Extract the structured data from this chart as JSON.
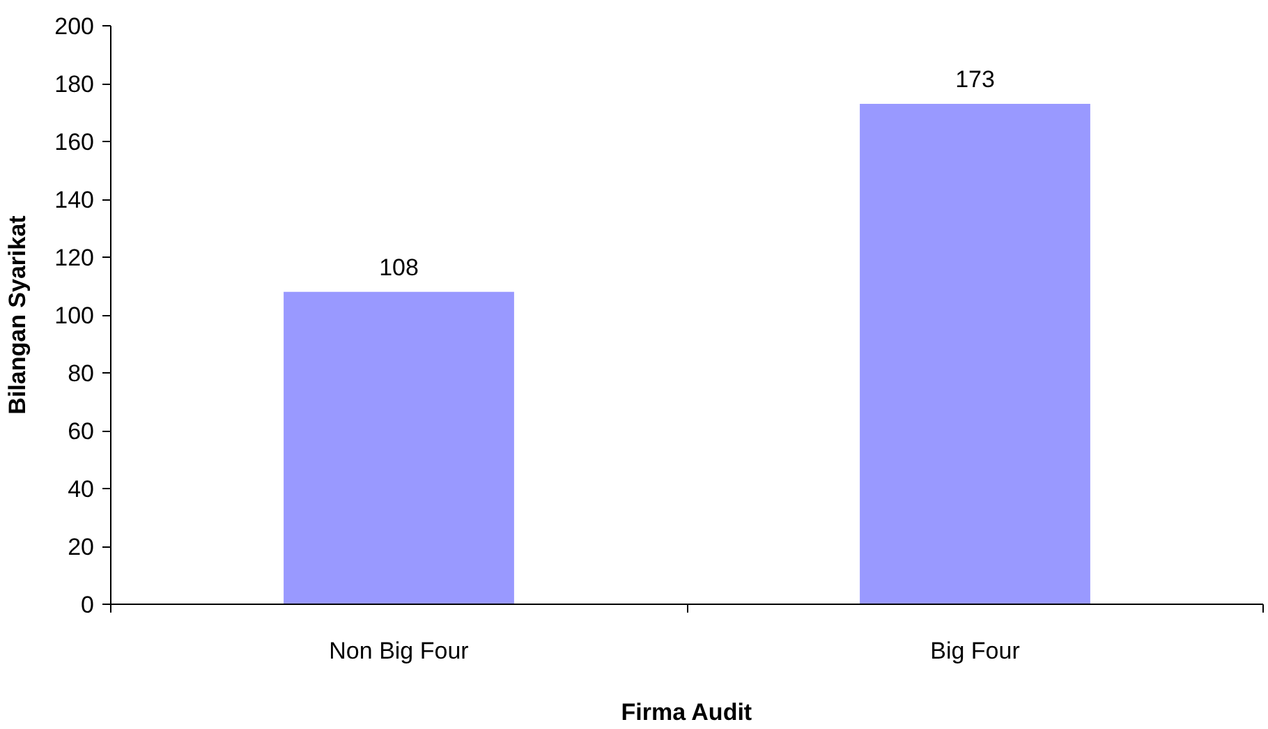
{
  "chart_data": {
    "type": "bar",
    "xlabel": "Firma Audit",
    "ylabel": "Bilangan Syarikat",
    "categories": [
      "Non Big Four",
      "Big Four"
    ],
    "values": [
      108,
      173
    ],
    "color": "#9999ff",
    "ylim": [
      0,
      200
    ],
    "yticks": [
      0,
      20,
      40,
      60,
      80,
      100,
      120,
      140,
      160,
      180,
      200
    ],
    "grid": false,
    "data_labels": true
  }
}
